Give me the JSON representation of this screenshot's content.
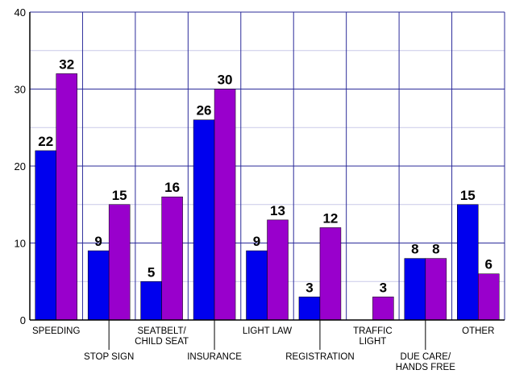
{
  "chart_data": {
    "type": "bar",
    "title": "",
    "xlabel": "",
    "ylabel": "",
    "ylim": [
      0,
      40
    ],
    "yticks": [
      0,
      10,
      20,
      30,
      40
    ],
    "grid": true,
    "legend": "none",
    "categories": [
      [
        "SPEEDING"
      ],
      [
        "STOP SIGN"
      ],
      [
        "SEATBELT/",
        "CHILD SEAT"
      ],
      [
        "INSURANCE"
      ],
      [
        "LIGHT LAW"
      ],
      [
        "REGISTRATION"
      ],
      [
        "TRAFFIC",
        "LIGHT"
      ],
      [
        "DUE CARE/",
        "HANDS FREE"
      ],
      [
        "OTHER"
      ]
    ],
    "series": [
      {
        "color": "#0000ee",
        "values": [
          22,
          9,
          5,
          26,
          9,
          3,
          0,
          8,
          15
        ],
        "labels": [
          "22",
          "9",
          "5",
          "26",
          "9",
          "3",
          "",
          "8",
          "15"
        ]
      },
      {
        "color": "#9900cc",
        "values": [
          32,
          15,
          16,
          30,
          13,
          12,
          3,
          8,
          6
        ],
        "labels": [
          "32",
          "15",
          "16",
          "30",
          "13",
          "12",
          "3",
          "8",
          "6"
        ]
      }
    ],
    "grid_color": "#2b2b9a",
    "minor_grid_color": "#c9c9e8"
  }
}
